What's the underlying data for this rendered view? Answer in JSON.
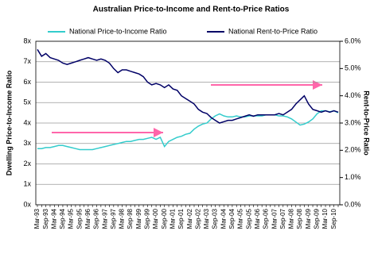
{
  "chart_data": {
    "type": "line",
    "title": "Australian Price-to-Income and Rent-to-Price Ratios",
    "y_label": "Dwelling Price-to-Income Ratio",
    "y2_label": "Rent-to-Price Ratio",
    "categories": [
      "Mar-93",
      null,
      "Sep-93",
      null,
      "Mar-94",
      null,
      "Sep-94",
      null,
      "Mar-95",
      null,
      "Sep-95",
      null,
      "Mar-96",
      null,
      "Sep-96",
      null,
      "Mar-97",
      null,
      "Sep-97",
      null,
      "Mar-98",
      null,
      "Sep-98",
      null,
      "Mar-99",
      null,
      "Sep-99",
      null,
      "Mar-00",
      null,
      "Sep-00",
      null,
      "Mar-01",
      null,
      "Sep-01",
      null,
      "Mar-02",
      null,
      "Sep-02",
      null,
      "Mar-03",
      null,
      "Sep-03",
      null,
      "Mar-04",
      null,
      "Sep-04",
      null,
      "Mar-05",
      null,
      "Sep-05",
      null,
      "Mar-06",
      null,
      "Sep-06",
      null,
      "Mar-07",
      null,
      "Sep-07",
      null,
      "Mar-08",
      null,
      "Sep-08",
      null,
      "Mar-09",
      null,
      "Sep-09",
      null,
      "Mar-10",
      null,
      "Sep-10",
      null
    ],
    "series": [
      {
        "name": "National Price-to-Income Ratio",
        "color": "#33cccc",
        "axis": "y",
        "values": [
          2.75,
          2.75,
          2.8,
          2.8,
          2.85,
          2.9,
          2.9,
          2.85,
          2.8,
          2.75,
          2.7,
          2.7,
          2.7,
          2.7,
          2.75,
          2.8,
          2.85,
          2.9,
          2.95,
          3.0,
          3.05,
          3.1,
          3.1,
          3.15,
          3.2,
          3.2,
          3.25,
          3.3,
          3.2,
          3.3,
          2.85,
          3.1,
          3.2,
          3.3,
          3.35,
          3.45,
          3.5,
          3.7,
          3.85,
          3.95,
          4.0,
          4.2,
          4.35,
          4.45,
          4.35,
          4.3,
          4.3,
          4.35,
          4.3,
          4.3,
          4.35,
          4.35,
          4.35,
          4.35,
          4.4,
          4.4,
          4.4,
          4.35,
          4.35,
          4.3,
          4.2,
          4.05,
          3.9,
          3.95,
          4.05,
          4.2,
          4.45,
          4.6,
          4.6,
          4.55,
          4.6,
          4.5
        ]
      },
      {
        "name": "National Rent-to-Price Ratio",
        "color": "#000066",
        "axis": "y2",
        "values": [
          5.7,
          5.45,
          5.55,
          5.4,
          5.35,
          5.3,
          5.2,
          5.15,
          5.2,
          5.25,
          5.3,
          5.35,
          5.4,
          5.35,
          5.3,
          5.35,
          5.3,
          5.2,
          5.0,
          4.85,
          4.95,
          4.95,
          4.9,
          4.85,
          4.8,
          4.7,
          4.5,
          4.4,
          4.45,
          4.4,
          4.3,
          4.4,
          4.25,
          4.2,
          4.0,
          3.9,
          3.8,
          3.7,
          3.5,
          3.4,
          3.35,
          3.2,
          3.1,
          3.0,
          3.05,
          3.1,
          3.1,
          3.15,
          3.2,
          3.25,
          3.3,
          3.25,
          3.3,
          3.3,
          3.3,
          3.3,
          3.3,
          3.35,
          3.3,
          3.4,
          3.5,
          3.7,
          3.85,
          4.0,
          3.7,
          3.5,
          3.45,
          3.4,
          3.45,
          3.4,
          3.45,
          3.4
        ]
      }
    ],
    "ylim": [
      0,
      8
    ],
    "yticks": [
      {
        "value": 0,
        "label": "0x"
      },
      {
        "value": 1,
        "label": "1x"
      },
      {
        "value": 2,
        "label": "2x"
      },
      {
        "value": 3,
        "label": "3x"
      },
      {
        "value": 4,
        "label": "4x"
      },
      {
        "value": 5,
        "label": "5x"
      },
      {
        "value": 6,
        "label": "6x"
      },
      {
        "value": 7,
        "label": "7x"
      },
      {
        "value": 8,
        "label": "8x"
      }
    ],
    "y2lim": [
      0,
      6
    ],
    "y2ticks": [
      {
        "value": 0,
        "label": "0.0%"
      },
      {
        "value": 1,
        "label": "1.0%"
      },
      {
        "value": 2,
        "label": "2.0%"
      },
      {
        "value": 3,
        "label": "3.0%"
      },
      {
        "value": 4,
        "label": "4.0%"
      },
      {
        "value": 5,
        "label": "5.0%"
      },
      {
        "value": 6,
        "label": "6.0%"
      }
    ],
    "grid": true
  }
}
